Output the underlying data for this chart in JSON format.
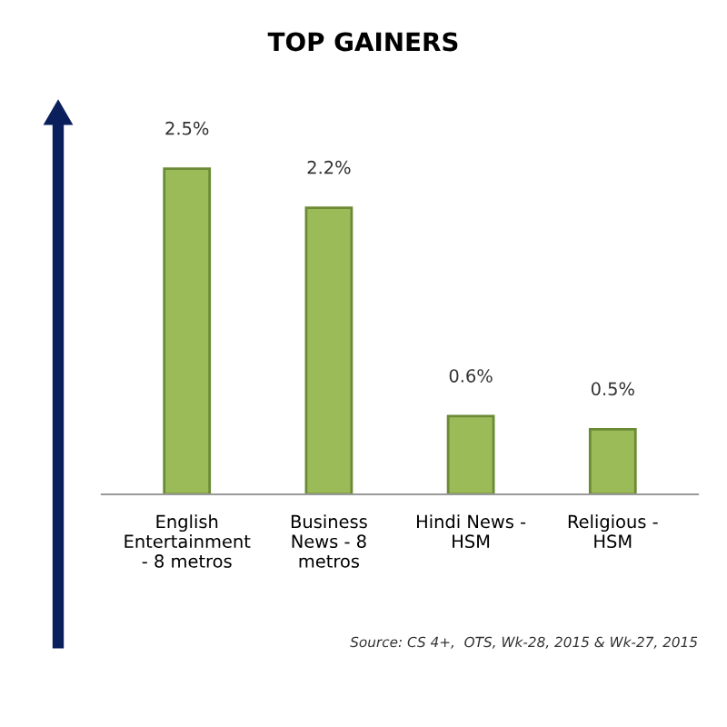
{
  "chart_data": {
    "type": "bar",
    "title": "TOP GAINERS",
    "categories": [
      "English\nEntertainment\n- 8 metros",
      "Business\nNews - 8\nmetros",
      "Hindi News -\nHSM",
      "Religious -\nHSM"
    ],
    "values": [
      2.5,
      2.2,
      0.6,
      0.5
    ],
    "value_labels": [
      "2.5%",
      "2.2%",
      "0.6%",
      "0.5%"
    ],
    "color": "#9bbb59",
    "grid": false,
    "legend": false,
    "annotations": [
      "Source: CS 4+,  OTS, Wk-28, 2015 & Wk-27, 2015"
    ]
  }
}
